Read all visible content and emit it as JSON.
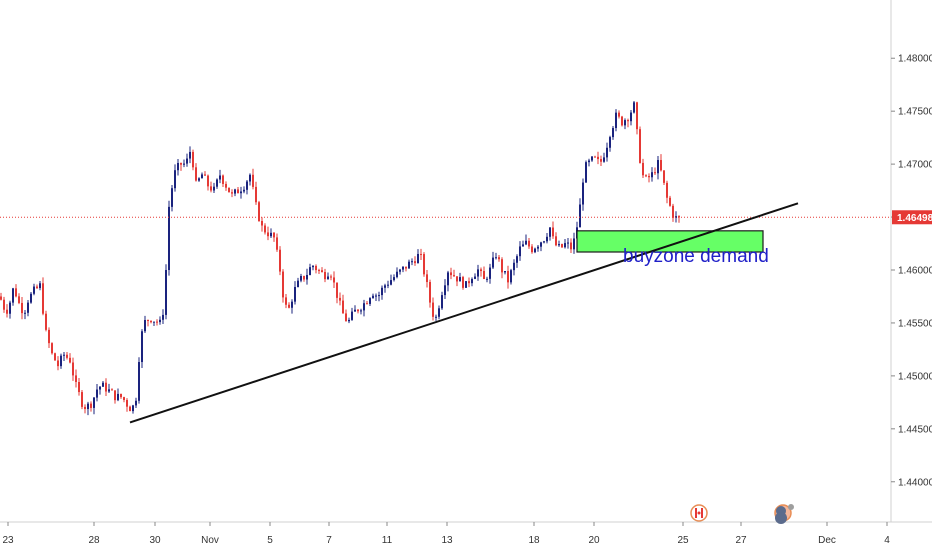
{
  "chart_data": {
    "type": "candlestick",
    "instrument_hint": "",
    "x_tick_labels": [
      "23",
      "28",
      "30",
      "Nov",
      "5",
      "7",
      "11",
      "13",
      "18",
      "20",
      "25",
      "27",
      "Dec",
      "4"
    ],
    "y_tick_labels": [
      "1.48000",
      "1.47500",
      "1.47000",
      "1.46500",
      "1.46000",
      "1.45500",
      "1.45000",
      "1.44500",
      "1.44000"
    ],
    "y_ticks": [
      1.48,
      1.475,
      1.47,
      1.465,
      1.46,
      1.455,
      1.45,
      1.445,
      1.44
    ],
    "ylim": [
      1.4362,
      1.4855
    ],
    "current_price": 1.46498,
    "current_price_label": "1.46498",
    "up_color": "#1a237e",
    "down_color": "#e53935",
    "price_line_color": "#e53935",
    "trendline": {
      "from": {
        "x": "Oct 29",
        "y": 1.4456
      },
      "to": {
        "x": "Dec 1",
        "y": 1.4663
      }
    },
    "demand_zone": {
      "x_from": "Nov 19",
      "x_to": "Nov 28",
      "y_low": 1.4617,
      "y_high": 1.4637,
      "color": "#66ff66"
    },
    "annotation": {
      "text": "buyzone demand",
      "color": "#2020c8"
    },
    "path": [
      [
        0,
        1.4575
      ],
      [
        3,
        1.4572
      ],
      [
        8,
        1.456
      ],
      [
        12,
        1.457
      ],
      [
        16,
        1.4585
      ],
      [
        20,
        1.457
      ],
      [
        26,
        1.456
      ],
      [
        30,
        1.4572
      ],
      [
        36,
        1.458
      ],
      [
        42,
        1.4585
      ],
      [
        48,
        1.454
      ],
      [
        54,
        1.452
      ],
      [
        60,
        1.451
      ],
      [
        66,
        1.452
      ],
      [
        72,
        1.4515
      ],
      [
        78,
        1.449
      ],
      [
        84,
        1.4475
      ],
      [
        88,
        1.447
      ],
      [
        94,
        1.4475
      ],
      [
        100,
        1.449
      ],
      [
        106,
        1.449
      ],
      [
        112,
        1.4485
      ],
      [
        118,
        1.448
      ],
      [
        124,
        1.448
      ],
      [
        130,
        1.4472
      ],
      [
        134,
        1.4468
      ],
      [
        138,
        1.448
      ],
      [
        142,
        1.453
      ],
      [
        146,
        1.455
      ],
      [
        152,
        1.4555
      ],
      [
        158,
        1.4552
      ],
      [
        164,
        1.4548
      ],
      [
        168,
        1.46
      ],
      [
        171,
        1.466
      ],
      [
        176,
        1.469
      ],
      [
        182,
        1.47
      ],
      [
        188,
        1.47
      ],
      [
        193,
        1.4715
      ],
      [
        198,
        1.468
      ],
      [
        204,
        1.469
      ],
      [
        210,
        1.468
      ],
      [
        216,
        1.4675
      ],
      [
        222,
        1.469
      ],
      [
        228,
        1.468
      ],
      [
        234,
        1.467
      ],
      [
        240,
        1.4675
      ],
      [
        246,
        1.468
      ],
      [
        252,
        1.469
      ],
      [
        258,
        1.466
      ],
      [
        264,
        1.464
      ],
      [
        270,
        1.4635
      ],
      [
        276,
        1.463
      ],
      [
        282,
        1.46
      ],
      [
        286,
        1.457
      ],
      [
        290,
        1.456
      ],
      [
        296,
        1.458
      ],
      [
        302,
        1.459
      ],
      [
        308,
        1.4595
      ],
      [
        314,
        1.4605
      ],
      [
        320,
        1.46
      ],
      [
        326,
        1.4595
      ],
      [
        332,
        1.46
      ],
      [
        338,
        1.458
      ],
      [
        344,
        1.456
      ],
      [
        350,
        1.455
      ],
      [
        356,
        1.456
      ],
      [
        362,
        1.4565
      ],
      [
        368,
        1.457
      ],
      [
        374,
        1.458
      ],
      [
        380,
        1.4575
      ],
      [
        386,
        1.4585
      ],
      [
        392,
        1.459
      ],
      [
        398,
        1.4595
      ],
      [
        404,
        1.46
      ],
      [
        410,
        1.4605
      ],
      [
        416,
        1.461
      ],
      [
        422,
        1.4615
      ],
      [
        428,
        1.459
      ],
      [
        434,
        1.456
      ],
      [
        438,
        1.4555
      ],
      [
        444,
        1.458
      ],
      [
        450,
        1.46
      ],
      [
        456,
        1.4595
      ],
      [
        462,
        1.459
      ],
      [
        468,
        1.4585
      ],
      [
        474,
        1.4595
      ],
      [
        480,
        1.46
      ],
      [
        486,
        1.459
      ],
      [
        492,
        1.46
      ],
      [
        498,
        1.4615
      ],
      [
        504,
        1.46
      ],
      [
        510,
        1.459
      ],
      [
        516,
        1.4605
      ],
      [
        522,
        1.462
      ],
      [
        528,
        1.4625
      ],
      [
        534,
        1.462
      ],
      [
        540,
        1.4625
      ],
      [
        546,
        1.463
      ],
      [
        552,
        1.464
      ],
      [
        556,
        1.4625
      ],
      [
        562,
        1.462
      ],
      [
        568,
        1.4625
      ],
      [
        574,
        1.462
      ],
      [
        578,
        1.4635
      ],
      [
        582,
        1.466
      ],
      [
        586,
        1.4695
      ],
      [
        590,
        1.47
      ],
      [
        596,
        1.4705
      ],
      [
        602,
        1.47
      ],
      [
        608,
        1.4715
      ],
      [
        612,
        1.473
      ],
      [
        618,
        1.4745
      ],
      [
        624,
        1.474
      ],
      [
        630,
        1.4745
      ],
      [
        636,
        1.4755
      ],
      [
        640,
        1.472
      ],
      [
        644,
        1.469
      ],
      [
        648,
        1.4685
      ],
      [
        654,
        1.469
      ],
      [
        660,
        1.47
      ],
      [
        664,
        1.469
      ],
      [
        668,
        1.467
      ],
      [
        672,
        1.466
      ],
      [
        676,
        1.465
      ],
      [
        680,
        1.4648
      ]
    ]
  }
}
